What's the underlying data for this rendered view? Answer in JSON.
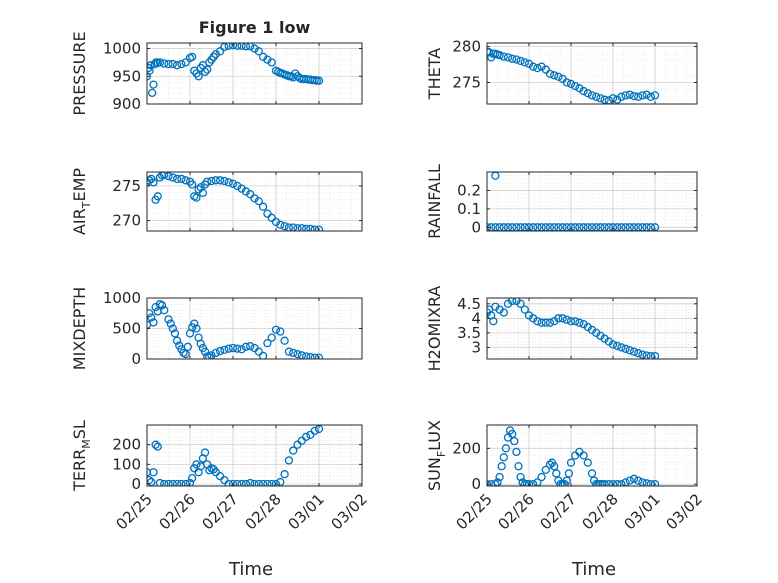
{
  "figure": {
    "title": "Figure 1 low",
    "xlabel": "Time"
  },
  "chart_data": [
    {
      "type": "scatter",
      "ylabel": "PRESSURE",
      "title": "Figure 1 low",
      "xlim": [
        0,
        5
      ],
      "ylim": [
        900,
        1010
      ],
      "yticks": [
        900,
        950,
        1000
      ],
      "ytick_labels": [
        "900",
        "950",
        "1000"
      ],
      "series": [
        {
          "color": "#0072BD",
          "x": [
            0.0,
            0.03,
            0.06,
            0.09,
            0.12,
            0.15,
            0.18,
            0.21,
            0.25,
            0.3,
            0.4,
            0.5,
            0.6,
            0.7,
            0.8,
            0.9,
            1.0,
            1.05,
            1.1,
            1.15,
            1.2,
            1.25,
            1.3,
            1.35,
            1.4,
            1.45,
            1.5,
            1.55,
            1.6,
            1.7,
            1.8,
            1.9,
            2.0,
            2.1,
            2.2,
            2.3,
            2.4,
            2.5,
            2.6,
            2.7,
            2.8,
            2.9,
            3.0,
            3.05,
            3.1,
            3.15,
            3.2,
            3.25,
            3.3,
            3.35,
            3.4,
            3.45,
            3.5,
            3.55,
            3.6,
            3.65,
            3.7,
            3.75,
            3.8,
            3.85,
            3.9,
            3.95,
            4.0
          ],
          "y": [
            950,
            965,
            960,
            970,
            920,
            935,
            972,
            975,
            974,
            975,
            973,
            972,
            972,
            970,
            972,
            975,
            983,
            985,
            960,
            955,
            950,
            965,
            970,
            958,
            962,
            975,
            980,
            985,
            990,
            995,
            1003,
            1005,
            1006,
            1005,
            1005,
            1004,
            1004,
            1000,
            995,
            985,
            980,
            975,
            960,
            958,
            956,
            955,
            953,
            952,
            950,
            950,
            948,
            955,
            950,
            947,
            945,
            945,
            945,
            944,
            944,
            943,
            943,
            942,
            942
          ]
        }
      ],
      "grid": "on"
    },
    {
      "type": "scatter",
      "ylabel": "THETA",
      "xlim": [
        0,
        5
      ],
      "ylim": [
        272,
        280.5
      ],
      "yticks": [
        275,
        280
      ],
      "ytick_labels": [
        "275",
        "280"
      ],
      "series": [
        {
          "color": "#0072BD",
          "x": [
            0.0,
            0.05,
            0.1,
            0.15,
            0.2,
            0.25,
            0.3,
            0.4,
            0.5,
            0.6,
            0.7,
            0.8,
            0.9,
            1.0,
            1.1,
            1.2,
            1.3,
            1.4,
            1.5,
            1.6,
            1.7,
            1.8,
            1.9,
            2.0,
            2.1,
            2.2,
            2.3,
            2.4,
            2.5,
            2.6,
            2.7,
            2.8,
            2.9,
            3.0,
            3.1,
            3.2,
            3.3,
            3.4,
            3.5,
            3.6,
            3.7,
            3.8,
            3.9,
            4.0
          ],
          "y": [
            279.3,
            279.2,
            278.5,
            279.0,
            279.0,
            278.9,
            278.8,
            278.6,
            278.5,
            278.3,
            278.2,
            278.0,
            277.8,
            277.6,
            277.2,
            277.0,
            277.2,
            276.8,
            276.2,
            276.0,
            275.8,
            275.5,
            275.0,
            274.8,
            274.5,
            274.2,
            273.8,
            273.5,
            273.2,
            273.0,
            272.8,
            272.6,
            272.5,
            272.8,
            272.6,
            273.0,
            273.2,
            273.3,
            273.1,
            273.0,
            273.2,
            273.3,
            273.0,
            273.2
          ]
        }
      ],
      "grid": "on"
    },
    {
      "type": "scatter",
      "ylabel": "AIR_TEMP",
      "ylabel_main": "AIR",
      "ylabel_sub": "T",
      "ylabel_rest": "EMP",
      "xlim": [
        0,
        5
      ],
      "ylim": [
        268.5,
        277
      ],
      "yticks": [
        270,
        275
      ],
      "ytick_labels": [
        "270",
        "275"
      ],
      "series": [
        {
          "color": "#0072BD",
          "x": [
            0.0,
            0.05,
            0.1,
            0.15,
            0.2,
            0.25,
            0.3,
            0.35,
            0.4,
            0.5,
            0.6,
            0.7,
            0.8,
            0.9,
            1.0,
            1.05,
            1.1,
            1.15,
            1.2,
            1.25,
            1.3,
            1.35,
            1.4,
            1.5,
            1.6,
            1.7,
            1.8,
            1.9,
            2.0,
            2.1,
            2.2,
            2.3,
            2.4,
            2.5,
            2.6,
            2.7,
            2.8,
            2.9,
            3.0,
            3.1,
            3.2,
            3.3,
            3.4,
            3.5,
            3.6,
            3.7,
            3.8,
            3.9,
            4.0
          ],
          "y": [
            275.5,
            275.8,
            276.0,
            275.5,
            273.0,
            273.5,
            276.2,
            276.5,
            276.6,
            276.4,
            276.2,
            276.0,
            276.0,
            275.8,
            275.6,
            275.2,
            273.5,
            273.3,
            274.5,
            274.8,
            274.0,
            275.2,
            275.6,
            275.7,
            275.8,
            275.8,
            275.7,
            275.5,
            275.3,
            275.0,
            274.6,
            274.2,
            273.8,
            273.2,
            272.8,
            272.0,
            271.0,
            270.4,
            269.8,
            269.4,
            269.2,
            269.0,
            269.0,
            268.9,
            268.9,
            268.8,
            268.8,
            268.7,
            268.7
          ]
        }
      ],
      "grid": "on"
    },
    {
      "type": "scatter",
      "ylabel": "RAINFALL",
      "xlim": [
        0,
        5
      ],
      "ylim": [
        -0.02,
        0.3
      ],
      "yticks": [
        0,
        0.1,
        0.2
      ],
      "ytick_labels": [
        "0",
        "0.1",
        "0.2"
      ],
      "series": [
        {
          "color": "#0072BD",
          "x": [
            0.0,
            0.1,
            0.2,
            0.3,
            0.4,
            0.5,
            0.6,
            0.7,
            0.8,
            0.9,
            1.0,
            1.1,
            1.2,
            1.3,
            1.4,
            1.5,
            1.6,
            1.7,
            1.8,
            1.9,
            2.0,
            2.1,
            2.2,
            2.3,
            2.4,
            2.5,
            2.6,
            2.7,
            2.8,
            2.9,
            3.0,
            3.1,
            3.2,
            3.3,
            3.4,
            3.5,
            3.6,
            3.7,
            3.8,
            3.9,
            4.0,
            0.2
          ],
          "y": [
            0,
            0,
            0,
            0,
            0,
            0,
            0,
            0,
            0,
            0,
            0,
            0,
            0,
            0,
            0,
            0,
            0,
            0,
            0,
            0,
            0,
            0,
            0,
            0,
            0,
            0,
            0,
            0,
            0,
            0,
            0,
            0,
            0,
            0,
            0,
            0,
            0,
            0,
            0,
            0,
            0,
            0.28
          ]
        }
      ],
      "grid": "on"
    },
    {
      "type": "scatter",
      "ylabel": "MIXDEPTH",
      "xlim": [
        0,
        5
      ],
      "ylim": [
        0,
        1000
      ],
      "yticks": [
        0,
        500,
        1000
      ],
      "ytick_labels": [
        "0",
        "500",
        "1000"
      ],
      "series": [
        {
          "color": "#0072BD",
          "x": [
            0.0,
            0.05,
            0.1,
            0.15,
            0.2,
            0.25,
            0.3,
            0.35,
            0.4,
            0.5,
            0.55,
            0.6,
            0.65,
            0.7,
            0.75,
            0.8,
            0.85,
            0.9,
            0.95,
            1.0,
            1.05,
            1.1,
            1.15,
            1.2,
            1.25,
            1.3,
            1.35,
            1.4,
            1.45,
            1.5,
            1.6,
            1.7,
            1.8,
            1.9,
            2.0,
            2.1,
            2.2,
            2.3,
            2.4,
            2.5,
            2.6,
            2.7,
            2.8,
            2.9,
            3.0,
            3.1,
            3.2,
            3.3,
            3.4,
            3.5,
            3.6,
            3.7,
            3.8,
            3.9,
            4.0
          ],
          "y": [
            560,
            750,
            680,
            600,
            850,
            780,
            900,
            880,
            800,
            650,
            580,
            500,
            420,
            300,
            220,
            160,
            100,
            80,
            200,
            420,
            520,
            580,
            500,
            350,
            250,
            180,
            120,
            40,
            30,
            60,
            100,
            130,
            150,
            170,
            180,
            170,
            160,
            200,
            210,
            180,
            120,
            50,
            260,
            350,
            480,
            450,
            300,
            120,
            100,
            80,
            60,
            40,
            30,
            20,
            20
          ]
        }
      ],
      "grid": "on"
    },
    {
      "type": "scatter",
      "ylabel": "H2OMIXRA",
      "xlim": [
        0,
        5
      ],
      "ylim": [
        2.6,
        4.7
      ],
      "yticks": [
        3,
        3.5,
        4,
        4.5
      ],
      "ytick_labels": [
        "3",
        "3.5",
        "4",
        "4.5"
      ],
      "series": [
        {
          "color": "#0072BD",
          "x": [
            0.0,
            0.05,
            0.1,
            0.15,
            0.2,
            0.3,
            0.4,
            0.5,
            0.6,
            0.7,
            0.8,
            0.9,
            1.0,
            1.1,
            1.2,
            1.3,
            1.4,
            1.5,
            1.6,
            1.7,
            1.8,
            1.9,
            2.0,
            2.1,
            2.2,
            2.3,
            2.4,
            2.5,
            2.6,
            2.7,
            2.8,
            2.9,
            3.0,
            3.1,
            3.2,
            3.3,
            3.4,
            3.5,
            3.6,
            3.7,
            3.8,
            3.9,
            4.0
          ],
          "y": [
            4.2,
            4.3,
            4.1,
            3.9,
            4.4,
            4.3,
            4.2,
            4.5,
            4.6,
            4.6,
            4.5,
            4.3,
            4.1,
            4.0,
            3.9,
            3.85,
            3.85,
            3.85,
            3.9,
            4.0,
            4.0,
            3.95,
            3.9,
            3.9,
            3.85,
            3.8,
            3.7,
            3.6,
            3.5,
            3.4,
            3.3,
            3.2,
            3.1,
            3.05,
            3.0,
            2.95,
            2.9,
            2.85,
            2.8,
            2.75,
            2.72,
            2.7,
            2.7
          ]
        }
      ],
      "grid": "on"
    },
    {
      "type": "scatter",
      "ylabel": "TERR_MSL",
      "ylabel_main": "TERR",
      "ylabel_sub": "M",
      "ylabel_rest": "SL",
      "xlim": [
        0,
        5
      ],
      "ylim": [
        -10,
        300
      ],
      "yticks": [
        0,
        100,
        200
      ],
      "ytick_labels": [
        "0",
        "100",
        "200"
      ],
      "series": [
        {
          "color": "#0072BD",
          "x": [
            0.0,
            0.05,
            0.1,
            0.15,
            0.2,
            0.25,
            0.3,
            0.4,
            0.5,
            0.6,
            0.7,
            0.8,
            0.9,
            1.0,
            1.05,
            1.1,
            1.15,
            1.2,
            1.25,
            1.3,
            1.35,
            1.4,
            1.45,
            1.5,
            1.55,
            1.6,
            1.7,
            1.8,
            1.9,
            2.0,
            2.1,
            2.2,
            2.3,
            2.4,
            2.5,
            2.6,
            2.7,
            2.8,
            2.9,
            3.0,
            3.1,
            3.2,
            3.3,
            3.4,
            3.5,
            3.6,
            3.7,
            3.8,
            3.9,
            4.0
          ],
          "y": [
            60,
            20,
            10,
            60,
            200,
            190,
            5,
            0,
            0,
            0,
            0,
            0,
            0,
            5,
            30,
            80,
            100,
            60,
            90,
            130,
            160,
            100,
            70,
            80,
            75,
            60,
            40,
            20,
            0,
            0,
            0,
            0,
            0,
            5,
            0,
            0,
            0,
            0,
            0,
            0,
            10,
            50,
            120,
            170,
            200,
            220,
            240,
            250,
            270,
            280
          ]
        }
      ],
      "grid": "on"
    },
    {
      "type": "scatter",
      "ylabel": "SUN_FLUX",
      "ylabel_main": "SUN",
      "ylabel_sub": "F",
      "ylabel_rest": "LUX",
      "xlim": [
        0,
        5
      ],
      "ylim": [
        -10,
        330
      ],
      "yticks": [
        0,
        200
      ],
      "ytick_labels": [
        "0",
        "200"
      ],
      "series": [
        {
          "color": "#0072BD",
          "x": [
            0.0,
            0.1,
            0.2,
            0.25,
            0.3,
            0.35,
            0.4,
            0.45,
            0.5,
            0.55,
            0.6,
            0.65,
            0.7,
            0.75,
            0.8,
            0.85,
            0.9,
            0.95,
            1.0,
            1.1,
            1.2,
            1.3,
            1.4,
            1.5,
            1.55,
            1.6,
            1.65,
            1.7,
            1.75,
            1.8,
            1.85,
            1.9,
            1.95,
            2.0,
            2.1,
            2.2,
            2.3,
            2.4,
            2.5,
            2.55,
            2.6,
            2.65,
            2.7,
            2.75,
            2.8,
            2.9,
            3.0,
            3.1,
            3.2,
            3.3,
            3.4,
            3.5,
            3.6,
            3.7,
            3.8,
            3.9,
            4.0
          ],
          "y": [
            0,
            0,
            0,
            10,
            40,
            100,
            150,
            200,
            260,
            300,
            280,
            240,
            180,
            100,
            40,
            10,
            0,
            0,
            0,
            0,
            10,
            40,
            80,
            110,
            120,
            100,
            60,
            20,
            0,
            0,
            0,
            20,
            60,
            120,
            160,
            180,
            160,
            120,
            60,
            20,
            0,
            0,
            0,
            0,
            0,
            0,
            0,
            0,
            0,
            10,
            20,
            30,
            20,
            10,
            5,
            0,
            0
          ]
        }
      ],
      "grid": "on"
    }
  ],
  "x_ticks": {
    "positions": [
      0,
      1,
      2,
      3,
      4,
      5
    ],
    "labels": [
      "02/25",
      "02/26",
      "02/27",
      "02/28",
      "03/01",
      "03/02"
    ]
  },
  "colors": {
    "marker": "#0072BD",
    "axis": "#262626",
    "grid": "#dfdfdf"
  }
}
